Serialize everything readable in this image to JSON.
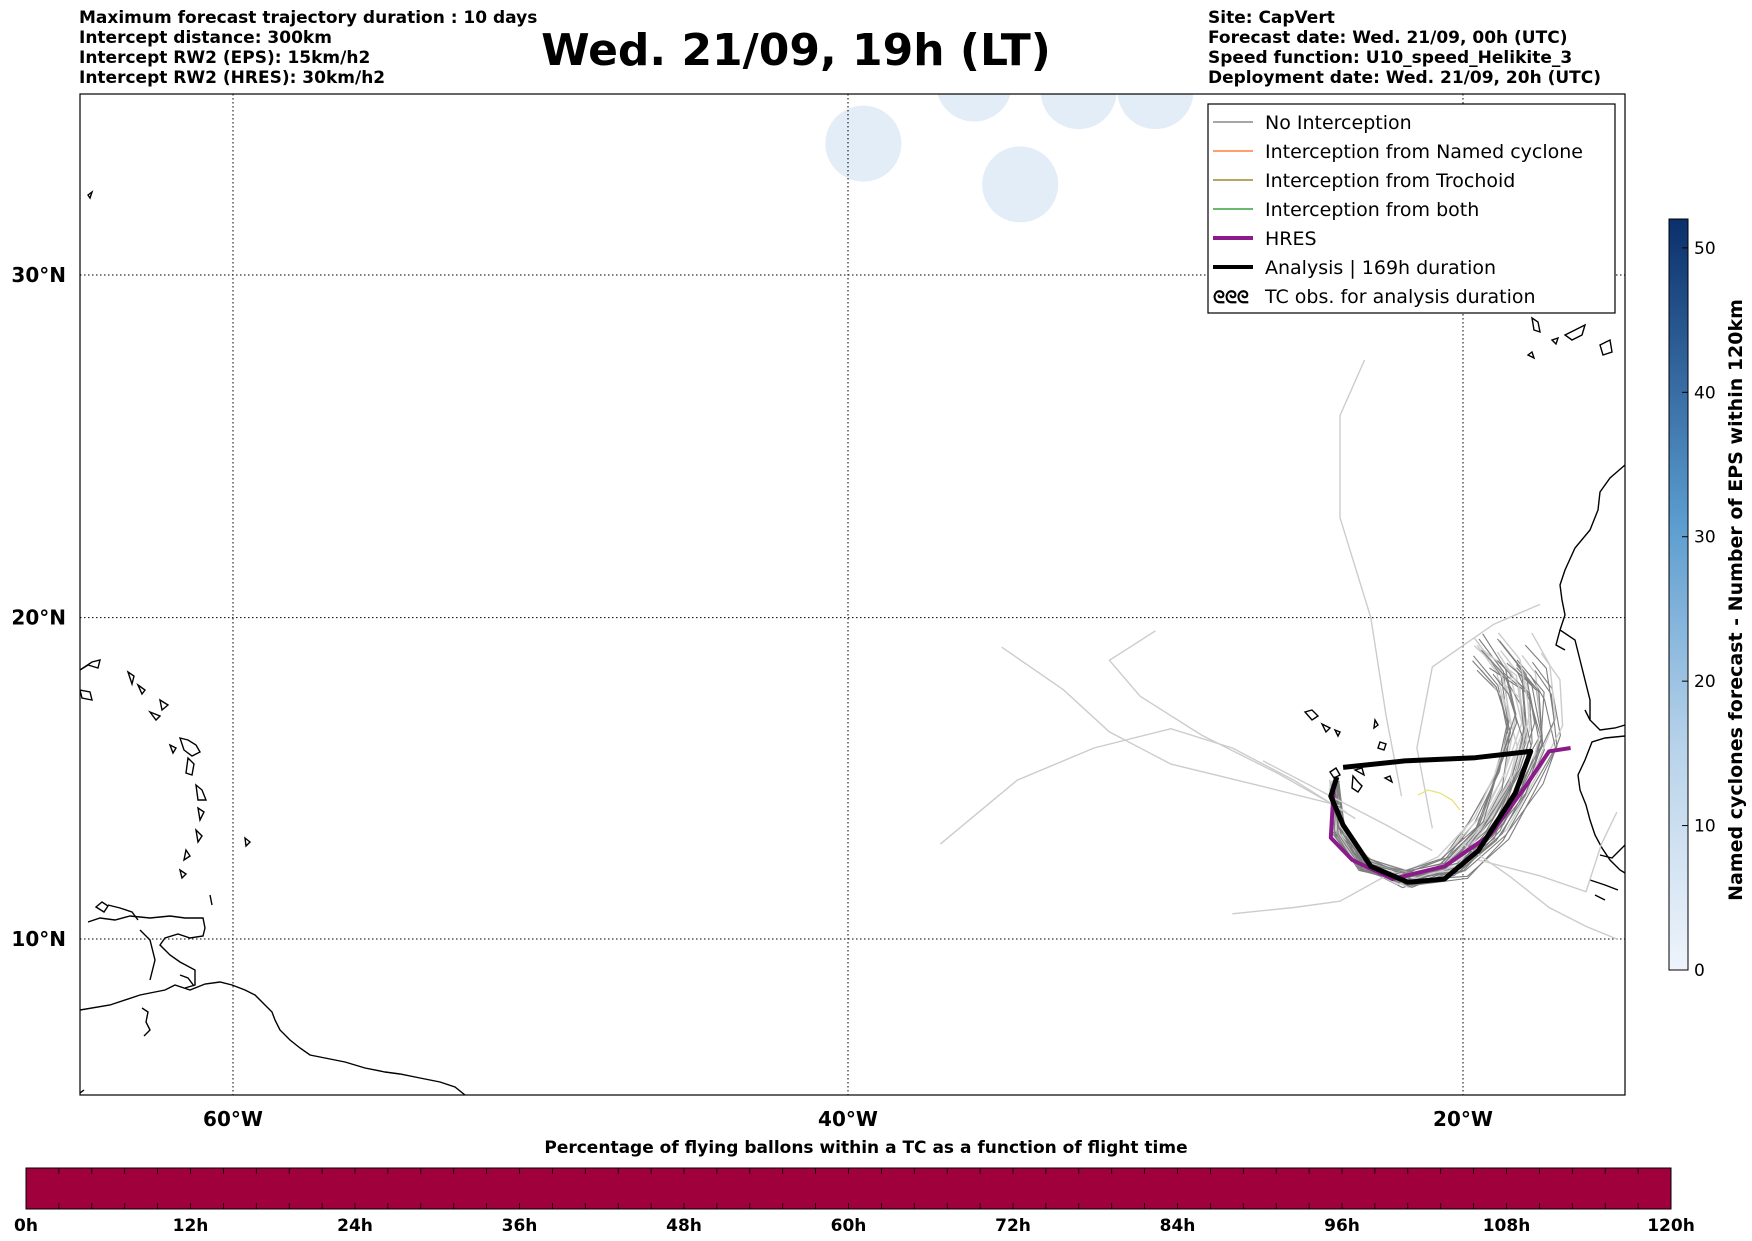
{
  "header_left": [
    "Maximum forecast trajectory duration : 10 days",
    "Intercept distance: 300km",
    "Intercept RW2 (EPS):  15km/h2",
    "Intercept RW2 (HRES): 30km/h2"
  ],
  "header_right": [
    "Site: CapVert",
    "Forecast date: Wed. 21/09, 00h (UTC)",
    "Speed function: U10_speed_Helikite_3",
    "Deployment date: Wed. 21/09, 20h (UTC)"
  ],
  "title": "Wed. 21/09, 19h (LT)",
  "map": {
    "lat_ticks": [
      {
        "value": 30,
        "label": "30°N"
      },
      {
        "value": 20,
        "label": "20°N"
      },
      {
        "value": 10,
        "label": "10°N"
      }
    ],
    "lon_ticks": [
      {
        "value": -60,
        "label": "60°W"
      },
      {
        "value": -40,
        "label": "40°W"
      },
      {
        "value": -20,
        "label": "20°W"
      }
    ],
    "grid": "dotted",
    "ocean_color": "#ffffff",
    "land_style": "coastline-outline"
  },
  "legend": {
    "placement": "top-right",
    "items": [
      {
        "label": "No Interception",
        "color": "#888888",
        "style": "thin-line"
      },
      {
        "label": "Interception from Named cyclone",
        "color": "#ff7f3f",
        "style": "thin-line"
      },
      {
        "label": "Interception from Trochoid",
        "color": "#9a8a30",
        "style": "thin-line"
      },
      {
        "label": "Interception from both",
        "color": "#3aa040",
        "style": "thin-line"
      },
      {
        "label": "HRES",
        "color": "#8b1a8b",
        "style": "thick-line"
      },
      {
        "label": "Analysis | 169h duration",
        "color": "#000000",
        "style": "thick-line"
      },
      {
        "label": "TC obs. for analysis duration",
        "color": "#000000",
        "style": "cyclone-symbols"
      }
    ]
  },
  "colorbar_right": {
    "label": "Named cyclones forecast - Number of EPS within 120km",
    "ticks": [
      "0",
      "10",
      "20",
      "30",
      "40",
      "50"
    ],
    "min": 0,
    "max": 52,
    "colormap": "blues",
    "color_low": "#eef4fb",
    "color_high": "#0b2f6b"
  },
  "colorbar_bottom": {
    "title": "Percentage of flying ballons within a TC as a function of flight time",
    "ticks": [
      "0h",
      "12h",
      "24h",
      "36h",
      "48h",
      "60h",
      "72h",
      "84h",
      "96h",
      "108h",
      "120h"
    ],
    "fill_color": "#a0003c"
  },
  "chart_data": {
    "type": "map-trajectories",
    "hres_track": [
      [
        -24.2,
        14.8
      ],
      [
        -24.3,
        13.2
      ],
      [
        -23.6,
        12.5
      ],
      [
        -22.3,
        11.9
      ],
      [
        -20.6,
        12.3
      ],
      [
        -19.1,
        13.3
      ],
      [
        -17.9,
        14.9
      ],
      [
        -17.2,
        15.9
      ],
      [
        -16.5,
        16.0
      ]
    ],
    "analysis_track": [
      [
        -23.9,
        15.4
      ],
      [
        -21.9,
        15.6
      ],
      [
        -19.6,
        15.7
      ],
      [
        -17.8,
        15.9
      ],
      [
        -18.3,
        14.6
      ],
      [
        -19.5,
        12.8
      ],
      [
        -20.6,
        11.9
      ],
      [
        -21.8,
        11.8
      ],
      [
        -23.0,
        12.3
      ],
      [
        -23.9,
        13.6
      ],
      [
        -24.3,
        14.5
      ],
      [
        -24.1,
        15.1
      ]
    ],
    "ensemble_color": "#7d7d7d",
    "ensemble_light_color": "#cccccc",
    "cyclone_density_patches": [
      {
        "lon": -39.5,
        "lat": 33.6,
        "value": 1
      },
      {
        "lon": -35.9,
        "lat": 35.2,
        "value": 1
      },
      {
        "lon": -34.4,
        "lat": 32.5,
        "value": 1
      },
      {
        "lon": -32.5,
        "lat": 35.0,
        "value": 1
      },
      {
        "lon": -30.0,
        "lat": 35.0,
        "value": 1
      }
    ]
  }
}
